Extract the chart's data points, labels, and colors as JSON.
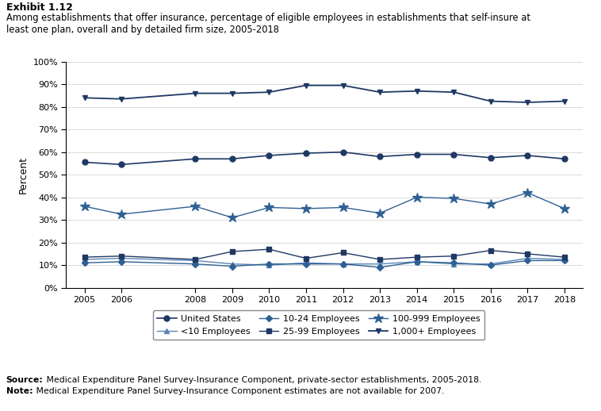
{
  "title_exhibit": "Exhibit 1.12",
  "title_main": "Among establishments that offer insurance, percentage of eligible employees in establishments that self-insure at\nleast one plan, overall and by detailed firm size, 2005-2018",
  "years": [
    2005,
    2006,
    2008,
    2009,
    2010,
    2011,
    2012,
    2013,
    2014,
    2015,
    2016,
    2017,
    2018
  ],
  "united_states": [
    55.5,
    54.5,
    57.0,
    57.0,
    58.5,
    59.5,
    60.0,
    58.0,
    59.0,
    59.0,
    57.5,
    58.5,
    57.0
  ],
  "lt10": [
    12.5,
    13.0,
    12.0,
    10.5,
    10.0,
    11.0,
    10.5,
    10.5,
    11.5,
    10.5,
    10.5,
    13.0,
    12.5
  ],
  "emp1024": [
    11.0,
    11.5,
    10.5,
    9.5,
    10.5,
    10.5,
    10.5,
    9.0,
    11.5,
    11.0,
    10.0,
    12.0,
    12.0
  ],
  "emp2599": [
    13.5,
    14.0,
    12.5,
    16.0,
    17.0,
    13.0,
    15.5,
    12.5,
    13.5,
    14.0,
    16.5,
    15.0,
    13.5
  ],
  "emp100999": [
    36.0,
    32.5,
    36.0,
    31.0,
    35.5,
    35.0,
    35.5,
    33.0,
    40.0,
    39.5,
    37.0,
    42.0,
    35.0
  ],
  "emp1000plus": [
    84.0,
    83.5,
    86.0,
    86.0,
    86.5,
    89.5,
    89.5,
    86.5,
    87.0,
    86.5,
    82.5,
    82.0,
    82.5
  ],
  "c_dark": "#1f3864",
  "c_mid": "#2e6093",
  "c_light": "#5b85b5",
  "ylabel": "Percent",
  "source_bold": "Source:",
  "source_rest": " Medical Expenditure Panel Survey-Insurance Component, private-sector establishments, 2005-2018.",
  "note_bold": "Note:",
  "note_rest": " Medical Expenditure Panel Survey-Insurance Component estimates are not available for 2007.",
  "legend_labels": [
    "United States",
    "<10 Employees",
    "10-24 Employees",
    "25-99 Employees",
    "100-999 Employees",
    "1,000+ Employees"
  ]
}
